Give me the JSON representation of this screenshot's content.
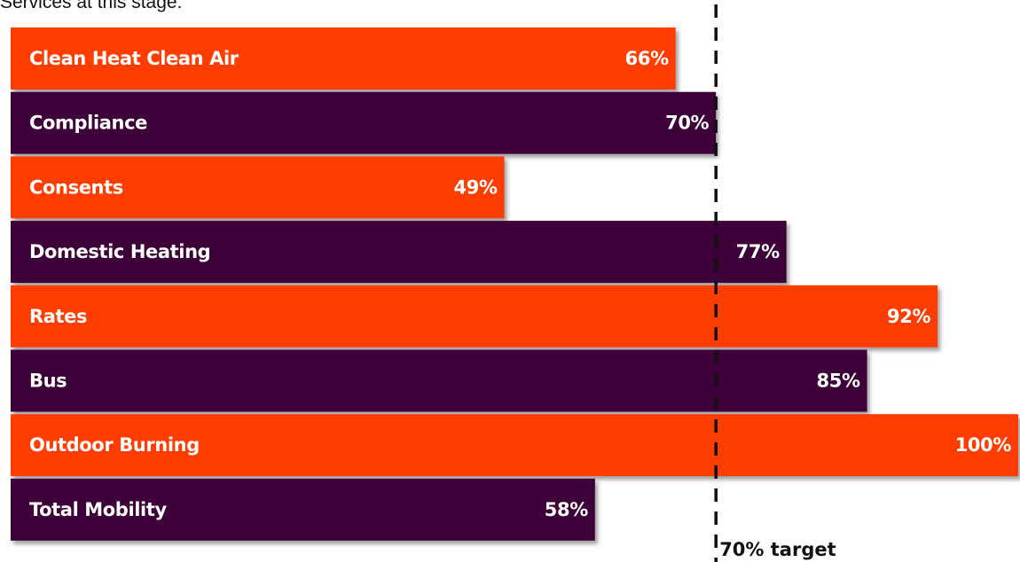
{
  "header": {
    "text": "Services at this stage:"
  },
  "colors": {
    "orange": "#ff3d00",
    "purple": "#3d0039",
    "shadow": "#9a9a9a",
    "target_line": "#111111"
  },
  "chart_data": {
    "type": "bar",
    "orientation": "horizontal",
    "categories": [
      "Clean Heat Clean Air",
      "Compliance",
      "Consents",
      "Domestic Heating",
      "Rates",
      "Bus",
      "Outdoor Burning",
      "Total Mobility"
    ],
    "values": [
      66,
      70,
      49,
      77,
      92,
      85,
      100,
      58
    ],
    "value_labels": [
      "66%",
      "70%",
      "49%",
      "77%",
      "92%",
      "85%",
      "100%",
      "58%"
    ],
    "bar_colors": [
      "#ff3d00",
      "#3d0039",
      "#ff3d00",
      "#3d0039",
      "#ff3d00",
      "#3d0039",
      "#ff3d00",
      "#3d0039"
    ],
    "xlim": [
      0,
      100
    ],
    "target": {
      "value": 70,
      "label": "70% target",
      "style": "dashed"
    },
    "grid": false,
    "legend": "none"
  }
}
